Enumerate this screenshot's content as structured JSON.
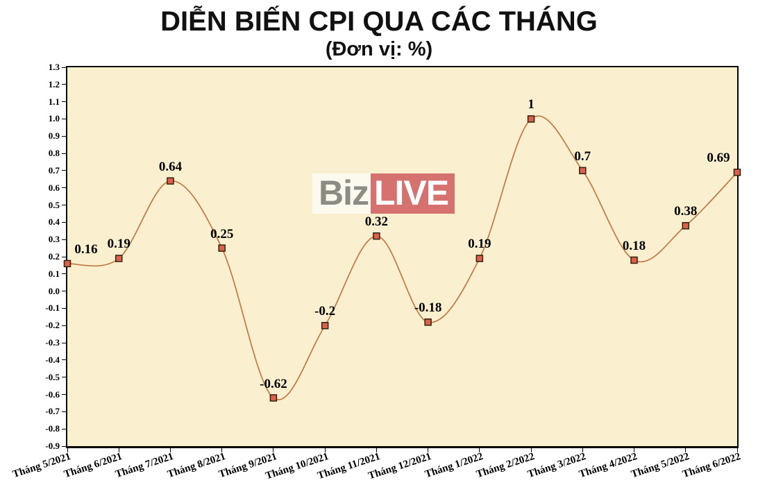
{
  "watermark": {
    "part1": "Biz",
    "part2": "LIVE"
  },
  "chart_data": {
    "type": "line",
    "smooth": true,
    "title": "DIỄN BIẾN CPI QUA CÁC THÁNG",
    "subtitle": "(Đơn vị: %)",
    "xlabel": "",
    "ylabel": "",
    "grid": false,
    "legend": "none",
    "categories": [
      "Tháng 5/2021",
      "Tháng 6/2021",
      "Tháng 7/2021",
      "Tháng 8/2021",
      "Tháng 9/2021",
      "Tháng 10/2021",
      "Tháng 11/2021",
      "Tháng 12/2021",
      "Tháng 1/2022",
      "Tháng 2/2022",
      "Tháng 3/2022",
      "Tháng 4/2022",
      "Tháng 5/2022",
      "Tháng 6/2022"
    ],
    "values": [
      0.16,
      0.19,
      0.64,
      0.25,
      -0.62,
      -0.2,
      0.32,
      -0.18,
      0.19,
      1,
      0.7,
      0.18,
      0.38,
      0.69
    ],
    "point_labels": [
      "0.16",
      "0.19",
      "0.64",
      "0.25",
      "-0.62",
      "-0.2",
      "0.32",
      "-0.18",
      "0.19",
      "1",
      "0.7",
      "0.18",
      "0.38",
      "0.69"
    ],
    "ylim": [
      -0.9,
      1.3
    ],
    "ytick_step": 0.1,
    "ytick_labels": [
      "1.3",
      "1.2",
      "1.1",
      "1.0",
      "0.9",
      "0.8",
      "0.7",
      "0.6",
      "0.5",
      "0.4",
      "0.3",
      "0.2",
      "0.1",
      "0.0",
      "-0.1",
      "-0.2",
      "-0.3",
      "-0.4",
      "-0.5",
      "-0.6",
      "-0.7",
      "-0.8",
      "-0.9"
    ]
  },
  "colors": {
    "plot_bg": "#FAF0D0",
    "line": "#C27840",
    "marker_fill": "#DC614A",
    "marker_border": "#33200F",
    "axis": "#000000",
    "label_text": "#000000",
    "watermark_biz_bg": "rgba(252,251,245,0.85)",
    "watermark_biz_text": "#8C8C84",
    "watermark_live_bg": "#D57270",
    "watermark_live_text": "#FFFFFF"
  }
}
